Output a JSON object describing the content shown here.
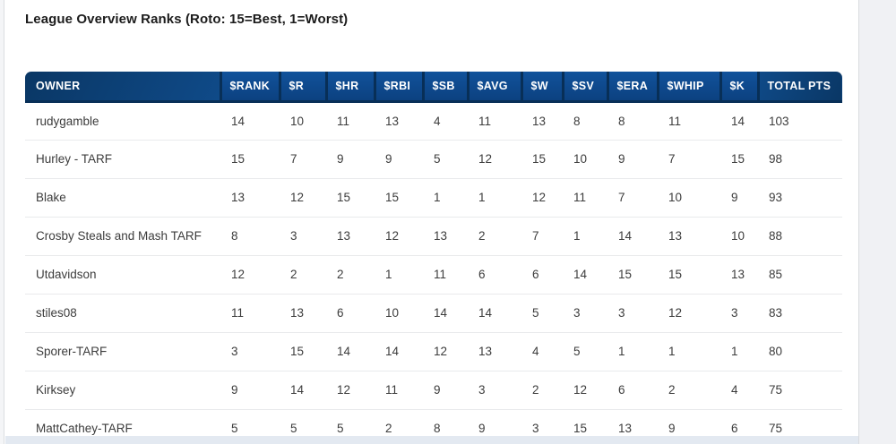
{
  "page": {
    "title": "League Overview Ranks (Roto: 15=Best, 1=Worst)"
  },
  "table": {
    "columns": [
      "OWNER",
      "$RANK",
      "$R",
      "$HR",
      "$RBI",
      "$SB",
      "$AVG",
      "$W",
      "$SV",
      "$ERA",
      "$WHIP",
      "$K",
      "TOTAL PTS"
    ],
    "rows": [
      {
        "owner": "rudygamble",
        "values": [
          14,
          10,
          11,
          13,
          4,
          11,
          13,
          8,
          8,
          11,
          14,
          103
        ]
      },
      {
        "owner": "Hurley - TARF",
        "values": [
          15,
          7,
          9,
          9,
          5,
          12,
          15,
          10,
          9,
          7,
          15,
          98
        ]
      },
      {
        "owner": "Blake",
        "values": [
          13,
          12,
          15,
          15,
          1,
          1,
          12,
          11,
          7,
          10,
          9,
          93
        ]
      },
      {
        "owner": "Crosby Steals and Mash TARF",
        "values": [
          8,
          3,
          13,
          12,
          13,
          2,
          7,
          1,
          14,
          13,
          10,
          88
        ]
      },
      {
        "owner": "Utdavidson",
        "values": [
          12,
          2,
          2,
          1,
          11,
          6,
          6,
          14,
          15,
          15,
          13,
          85
        ]
      },
      {
        "owner": "stiles08",
        "values": [
          11,
          13,
          6,
          10,
          14,
          14,
          5,
          3,
          3,
          12,
          3,
          83
        ]
      },
      {
        "owner": "Sporer-TARF",
        "values": [
          3,
          15,
          14,
          14,
          12,
          13,
          4,
          5,
          1,
          1,
          1,
          80
        ]
      },
      {
        "owner": "Kirksey",
        "values": [
          9,
          14,
          12,
          11,
          9,
          3,
          2,
          12,
          6,
          2,
          4,
          75
        ]
      },
      {
        "owner": "MattCathey-TARF",
        "values": [
          5,
          5,
          5,
          2,
          8,
          9,
          3,
          15,
          13,
          9,
          6,
          75
        ]
      }
    ]
  },
  "colors": {
    "header_base_dark": "#082f57",
    "header_cell_light": "#0f4c8d",
    "header_owner_gradient_start": "#0a3765",
    "header_owner_gradient_end": "#0f4a88",
    "row_border": "#e9eaec",
    "body_text": "#3c3c3c",
    "side_panel": "#f0f1f4",
    "bottom_strip": "#e3e9f1"
  }
}
